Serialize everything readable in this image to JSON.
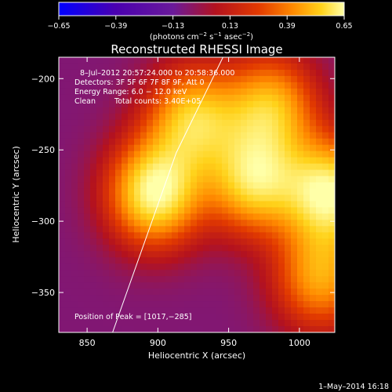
{
  "chart_data": {
    "type": "heatmap",
    "title": "Reconstructed RHESSI Image",
    "xlabel": "Heliocentric X (arcsec)",
    "ylabel": "Heliocentric Y (arcsec)",
    "xlim": [
      830,
      1025
    ],
    "ylim": [
      -378,
      -185
    ],
    "xticks": [
      850,
      900,
      950,
      1000
    ],
    "yticks": [
      -200,
      -250,
      -300,
      -350
    ],
    "xtick_labels": [
      "850",
      "900",
      "950",
      "1000"
    ],
    "ytick_labels": [
      "−200",
      "−250",
      "−300",
      "−350"
    ],
    "colorbar": {
      "min": -0.65,
      "max": 0.65,
      "ticks": [
        -0.65,
        -0.39,
        -0.13,
        0.13,
        0.39,
        0.65
      ],
      "tick_labels": [
        "−0.65",
        "−0.39",
        "−0.13",
        "0.13",
        "0.39",
        "0.65"
      ],
      "label_main": "(photons cm",
      "label_exp1": "−2",
      "label_mid": " s",
      "label_exp2": "−1",
      "label_end": " asec",
      "label_exp3": "−2",
      "label_close": ")",
      "colors": [
        "#0000ff",
        "#4a00b0",
        "#6a1a9a",
        "#b4121e",
        "#e23a00",
        "#ff8a00",
        "#ffd21a",
        "#ffffa8"
      ]
    },
    "annotations": [
      "8–Jul–2012 20:57:24.000 to 20:58:36.000",
      "Detectors: 3F 5F 6F 7F 8F 9F, Att 0",
      "Energy Range: 6.0 − 12.0 keV",
      "Clean",
      "Total counts: 3.40E+05"
    ],
    "peak_label": "Position of Peak = [1017,−285]",
    "peak": [
      1017,
      -285
    ],
    "limb_line": [
      [
        868,
        -378
      ],
      [
        913,
        -252
      ],
      [
        946,
        -185
      ]
    ],
    "sources": [
      {
        "x": 898,
        "y": -280,
        "value": 0.65
      },
      {
        "x": 1022,
        "y": -280,
        "value": 0.62
      },
      {
        "x": 968,
        "y": -272,
        "value": 0.5
      },
      {
        "x": 925,
        "y": -228,
        "value": 0.45
      },
      {
        "x": 980,
        "y": -220,
        "value": 0.4
      },
      {
        "x": 1015,
        "y": -340,
        "value": 0.35
      }
    ]
  },
  "footer": {
    "timestamp": "1–May–2014 16:18"
  }
}
